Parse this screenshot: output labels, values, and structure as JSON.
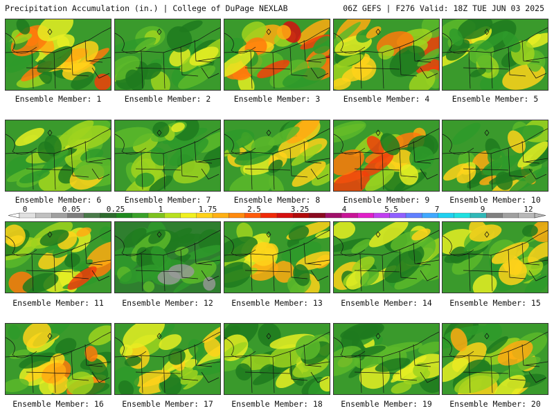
{
  "header": {
    "left": "Precipitation Accumulation (in.) | College of DuPage NEXLAB",
    "right": "06Z GEFS | F276 Valid: 18Z TUE JUN 03 2025"
  },
  "colorbar": {
    "labels": [
      "0",
      "0.05",
      "0.25",
      "1",
      "1.75",
      "2.5",
      "3.25",
      "4",
      "5.5",
      "7",
      "9",
      "12"
    ],
    "colors": [
      "#e0e0e0",
      "#c0c0c0",
      "#a0a0a0",
      "#7e7e7e",
      "#4a7a4a",
      "#2e6b2e",
      "#1f8a1f",
      "#3aa12a",
      "#7dc21f",
      "#b8e01f",
      "#f0f020",
      "#ffd21a",
      "#ffb014",
      "#ff8a0e",
      "#ff5a0a",
      "#f02a08",
      "#d41010",
      "#b00a0a",
      "#8a0a20",
      "#a0106a",
      "#c81496",
      "#e020c8",
      "#c040f0",
      "#9060ff",
      "#6080ff",
      "#40a8ff",
      "#20d0f0",
      "#20e0e0",
      "#30b8b8",
      "#808080",
      "#a0a0a0",
      "#b8b8b8"
    ]
  },
  "members": [
    {
      "label": "Ensemble Member: 1",
      "wet": 0.75
    },
    {
      "label": "Ensemble Member: 2",
      "wet": 0.35
    },
    {
      "label": "Ensemble Member: 3",
      "wet": 0.9
    },
    {
      "label": "Ensemble Member: 4",
      "wet": 0.85
    },
    {
      "label": "Ensemble Member: 5",
      "wet": 0.4
    },
    {
      "label": "Ensemble Member: 6",
      "wet": 0.4
    },
    {
      "label": "Ensemble Member: 7",
      "wet": 0.3
    },
    {
      "label": "Ensemble Member: 8",
      "wet": 0.5
    },
    {
      "label": "Ensemble Member: 9",
      "wet": 0.8
    },
    {
      "label": "Ensemble Member: 10",
      "wet": 0.6
    },
    {
      "label": "Ensemble Member: 11",
      "wet": 0.8
    },
    {
      "label": "Ensemble Member: 12",
      "wet": 0.1
    },
    {
      "label": "Ensemble Member: 13",
      "wet": 0.55
    },
    {
      "label": "Ensemble Member: 14",
      "wet": 0.4
    },
    {
      "label": "Ensemble Member: 15",
      "wet": 0.5
    },
    {
      "label": "Ensemble Member: 16",
      "wet": 0.7
    },
    {
      "label": "Ensemble Member: 17",
      "wet": 0.45
    },
    {
      "label": "Ensemble Member: 18",
      "wet": 0.35
    },
    {
      "label": "Ensemble Member: 19",
      "wet": 0.4
    },
    {
      "label": "Ensemble Member: 20",
      "wet": 0.6
    }
  ]
}
